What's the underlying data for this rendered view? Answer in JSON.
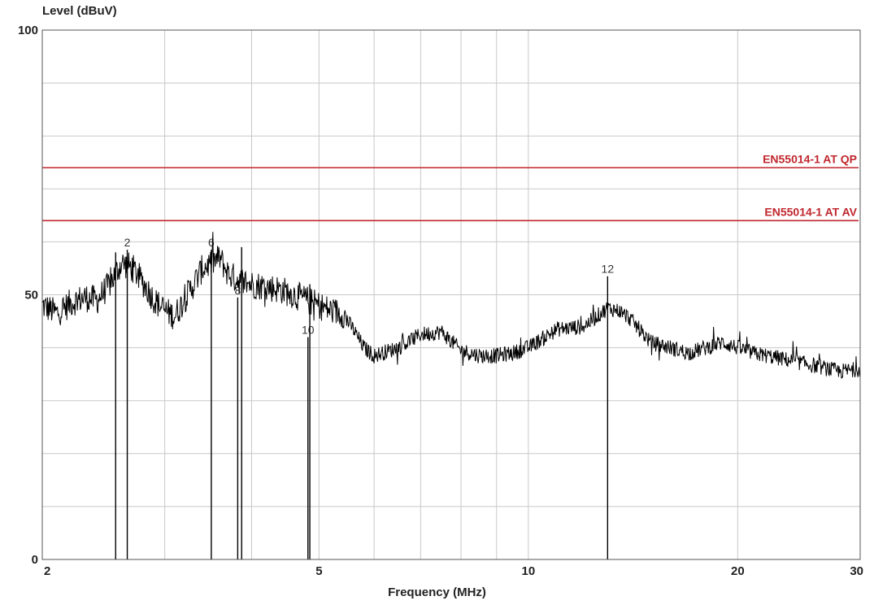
{
  "chart_data": {
    "type": "line",
    "ylabel": "Level (dBuV)",
    "xlabel": "Frequency (MHz)",
    "x_scale": "log",
    "xlim": [
      2,
      30
    ],
    "ylim": [
      0,
      100
    ],
    "x_ticks": [
      {
        "value": 2,
        "label": "2"
      },
      {
        "value": 5,
        "label": "5"
      },
      {
        "value": 10,
        "label": "10"
      },
      {
        "value": 20,
        "label": "20"
      },
      {
        "value": 30,
        "label": "30"
      }
    ],
    "y_ticks": [
      {
        "value": 0,
        "label": "0"
      },
      {
        "value": 50,
        "label": "50"
      },
      {
        "value": 100,
        "label": "100"
      }
    ],
    "grid": true,
    "limit_lines": [
      {
        "name": "EN55014-1 AT QP",
        "value": 74,
        "color": "#c0272d"
      },
      {
        "name": "EN55014-1 AT AV",
        "value": 64,
        "color": "#c0272d"
      }
    ],
    "trace_color": "#000000",
    "series": [
      {
        "values_x": [
          2.0,
          2.1,
          2.2,
          2.3,
          2.4,
          2.5,
          2.6,
          2.7,
          2.8,
          2.9,
          3.0,
          3.1,
          3.2,
          3.3,
          3.4,
          3.5,
          3.6,
          3.7,
          3.8,
          3.9,
          4.0,
          4.2,
          4.4,
          4.6,
          4.8,
          5.0,
          5.2,
          5.4,
          5.6,
          5.8,
          6.0,
          6.5,
          7.0,
          7.5,
          8.0,
          8.5,
          9.0,
          9.5,
          10.0,
          11.0,
          12.0,
          13.0,
          13.5,
          14.0,
          15.0,
          16.0,
          17.0,
          18.0,
          19.0,
          20.0,
          21.0,
          22.0,
          24.0,
          26.0,
          28.0,
          30.0
        ],
        "values_y": [
          48,
          46.5,
          48.5,
          49.5,
          49,
          52,
          56,
          55,
          52,
          49,
          47,
          46,
          49,
          52,
          55,
          56,
          57,
          54,
          53,
          52.5,
          52,
          51.5,
          51,
          50,
          49,
          48,
          47,
          46.5,
          43.5,
          40,
          38.5,
          40,
          42.5,
          43,
          39.5,
          38.5,
          38.5,
          39,
          40,
          43.5,
          44,
          47.5,
          47,
          45.5,
          41,
          40,
          39,
          40,
          41,
          40,
          39,
          38.5,
          37.5,
          36.5,
          35.5,
          36
        ]
      }
    ],
    "markers": [
      {
        "label": "",
        "x": 2.55,
        "y": 58
      },
      {
        "label": "2",
        "x": 2.65,
        "y": 58.5
      },
      {
        "label": "6",
        "x": 3.5,
        "y": 58.5
      },
      {
        "label": "8",
        "x": 3.82,
        "y": 49.5
      },
      {
        "label": "",
        "x": 3.87,
        "y": 59
      },
      {
        "label": "10",
        "x": 4.82,
        "y": 42
      },
      {
        "label": "",
        "x": 4.85,
        "y": 52
      },
      {
        "label": "12",
        "x": 13.0,
        "y": 53.5
      }
    ]
  }
}
